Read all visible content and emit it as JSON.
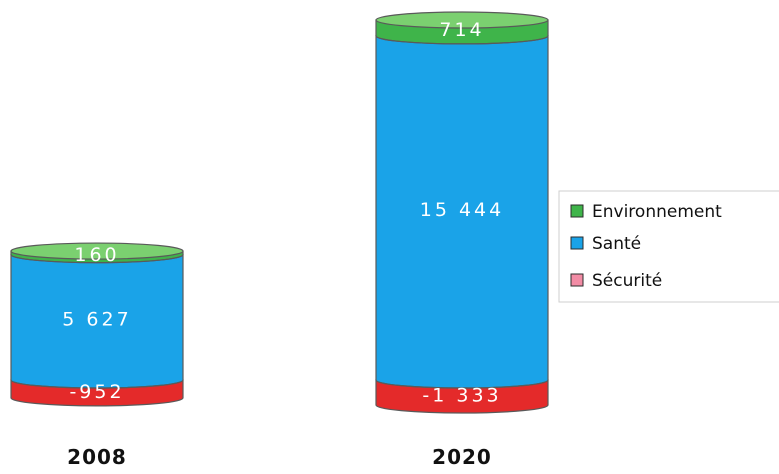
{
  "chart_data": {
    "type": "bar",
    "style": "stacked-cylinder",
    "title": "",
    "xlabel": "",
    "ylabel": "",
    "categories": [
      "2008",
      "2020"
    ],
    "series": [
      {
        "name": "Environnement",
        "color": "#3fb44a",
        "values": [
          160,
          714
        ],
        "labels": [
          "160",
          "714"
        ]
      },
      {
        "name": "Santé",
        "color": "#1aa3e8",
        "values": [
          5627,
          15444
        ],
        "labels": [
          "5 627",
          "15 444"
        ]
      },
      {
        "name": "Sécurité",
        "color": "#e42a2a",
        "legend_color": "#f28ca5",
        "values": [
          -952,
          -1333
        ],
        "labels": [
          "-952",
          "-1 333"
        ]
      }
    ],
    "legend": {
      "placement": "right",
      "order": [
        "Environnement",
        "Santé",
        "Sécurité"
      ]
    },
    "grid": false
  }
}
